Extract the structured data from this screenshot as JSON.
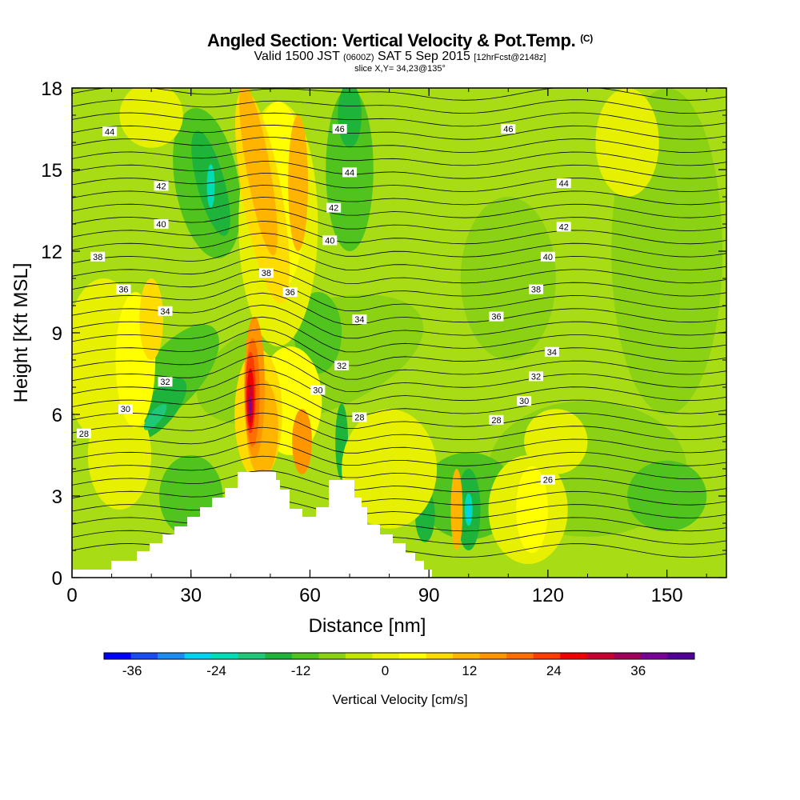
{
  "title": {
    "main": "Angled Section: Vertical Velocity & Pot.Temp.",
    "main_tag": "(C)",
    "valid_a": "Valid 1500 JST",
    "valid_b": "(0600Z)",
    "valid_c": "SAT 5 Sep 2015",
    "valid_d": "[12hrFcst@2148z]",
    "slice": "slice X,Y= 34,23@135°"
  },
  "chart_data": {
    "type": "heatmap",
    "xlabel": "Distance [nm]",
    "ylabel": "Height [Kft MSL]",
    "xlim": [
      0,
      165
    ],
    "ylim": [
      0,
      18
    ],
    "x_ticks": [
      0,
      30,
      60,
      90,
      120,
      150
    ],
    "y_ticks": [
      0,
      3,
      6,
      9,
      12,
      15,
      18
    ],
    "colorbar": {
      "label": "Vertical Velocity [cm/s]",
      "ticks": [
        -36,
        -24,
        -12,
        0,
        12,
        24,
        36
      ],
      "colors": [
        "#0000ff",
        "#1a4cf2",
        "#1a8cf2",
        "#00d2f0",
        "#00dcb4",
        "#1ec878",
        "#1eb43c",
        "#50c31e",
        "#8cd214",
        "#c3e600",
        "#e6f000",
        "#ffff00",
        "#ffdc00",
        "#ffb400",
        "#ff9600",
        "#ff6e00",
        "#ff3c00",
        "#f00000",
        "#c80032",
        "#a0005a",
        "#780096",
        "#500096"
      ]
    },
    "velocity_features": [
      {
        "x": 45,
        "y": 6.5,
        "value": 40,
        "note": "updraft core"
      },
      {
        "x": 70,
        "y": 17,
        "value": -18,
        "note": "downdraft"
      },
      {
        "x": 35,
        "y": 14.5,
        "value": -18,
        "note": "downdraft"
      },
      {
        "x": 22,
        "y": 6,
        "value": -16,
        "note": "downdraft"
      },
      {
        "x": 68,
        "y": 5,
        "value": -18,
        "note": "downdraft"
      },
      {
        "x": 100,
        "y": 2.5,
        "value": -20,
        "note": "downdraft"
      },
      {
        "x": 97,
        "y": 2.5,
        "value": 20,
        "note": "updraft"
      }
    ],
    "contour_labels": [
      {
        "text": "44",
        "x": 9.5,
        "y": 16.4
      },
      {
        "text": "46",
        "x": 67.5,
        "y": 16.5
      },
      {
        "text": "46",
        "x": 110,
        "y": 16.5
      },
      {
        "text": "42",
        "x": 22.5,
        "y": 14.4
      },
      {
        "text": "44",
        "x": 70,
        "y": 14.9
      },
      {
        "text": "44",
        "x": 124,
        "y": 14.5
      },
      {
        "text": "40",
        "x": 22.5,
        "y": 13.0
      },
      {
        "text": "42",
        "x": 66,
        "y": 13.6
      },
      {
        "text": "42",
        "x": 124,
        "y": 12.9
      },
      {
        "text": "38",
        "x": 6.5,
        "y": 11.8
      },
      {
        "text": "40",
        "x": 65,
        "y": 12.4
      },
      {
        "text": "40",
        "x": 120,
        "y": 11.8
      },
      {
        "text": "38",
        "x": 49,
        "y": 11.2
      },
      {
        "text": "36",
        "x": 13,
        "y": 10.6
      },
      {
        "text": "36",
        "x": 55,
        "y": 10.5
      },
      {
        "text": "38",
        "x": 117,
        "y": 10.6
      },
      {
        "text": "34",
        "x": 23.5,
        "y": 9.8
      },
      {
        "text": "34",
        "x": 72.5,
        "y": 9.5
      },
      {
        "text": "36",
        "x": 107,
        "y": 9.6
      },
      {
        "text": "34",
        "x": 121,
        "y": 8.3
      },
      {
        "text": "32",
        "x": 68,
        "y": 7.8
      },
      {
        "text": "32",
        "x": 23.5,
        "y": 7.2
      },
      {
        "text": "32",
        "x": 117,
        "y": 7.4
      },
      {
        "text": "30",
        "x": 62,
        "y": 6.9
      },
      {
        "text": "30",
        "x": 114,
        "y": 6.5
      },
      {
        "text": "30",
        "x": 13.5,
        "y": 6.2
      },
      {
        "text": "28",
        "x": 72.5,
        "y": 5.9
      },
      {
        "text": "28",
        "x": 107,
        "y": 5.8
      },
      {
        "text": "28",
        "x": 3,
        "y": 5.3
      },
      {
        "text": "26",
        "x": 120,
        "y": 3.6
      }
    ]
  }
}
